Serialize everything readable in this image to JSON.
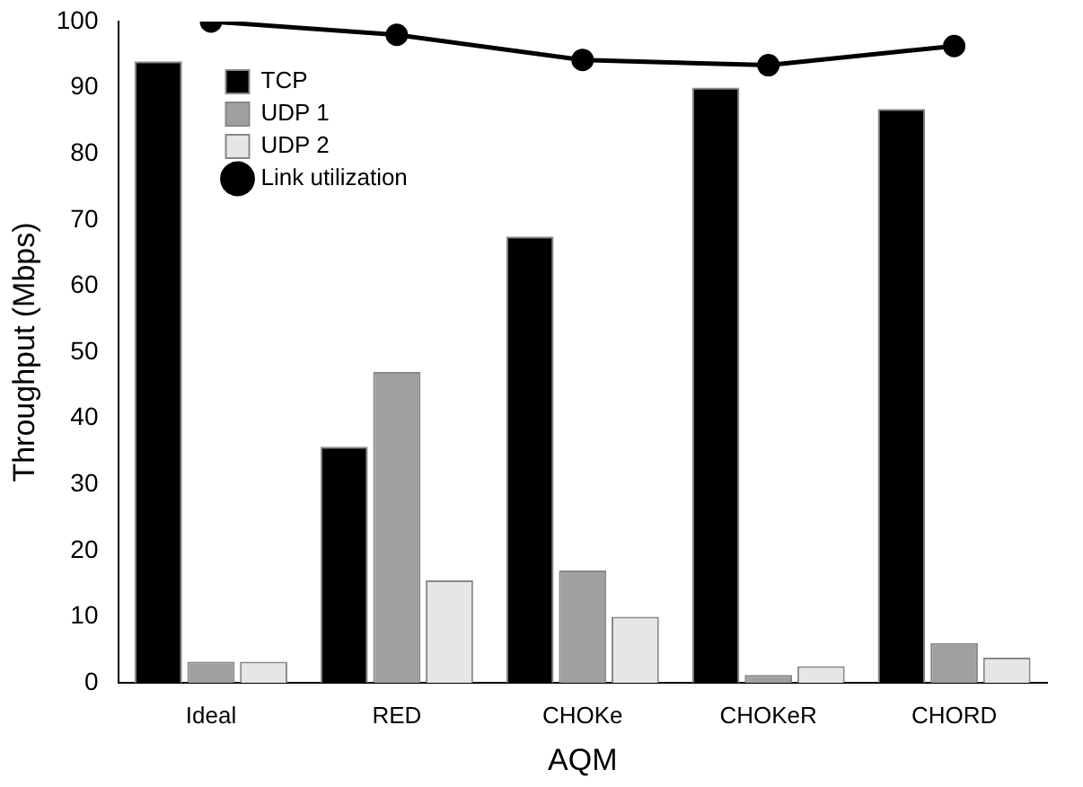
{
  "chart_data": {
    "type": "bar",
    "xlabel": "AQM",
    "ylabel": "Throughput (Mbps)",
    "categories": [
      "Ideal",
      "RED",
      "CHOKe",
      "CHOKeR",
      "CHORD"
    ],
    "series": [
      {
        "name": "TCP",
        "color": "#000000",
        "values": [
          94,
          35.7,
          67.5,
          90,
          86.8
        ]
      },
      {
        "name": "UDP 1",
        "color": "#a0a0a0",
        "values": [
          3.2,
          47,
          17,
          1.2,
          6
        ]
      },
      {
        "name": "UDP 2",
        "color": "#e6e6e6",
        "values": [
          3.2,
          15.5,
          10,
          2.5,
          3.8
        ]
      },
      {
        "name": "Link utilization",
        "type": "line",
        "color": "#000000",
        "values": [
          100,
          98,
          94.2,
          93.4,
          96.3
        ]
      }
    ],
    "ylim": [
      0,
      100
    ],
    "yticks": [
      0,
      10,
      20,
      30,
      40,
      50,
      60,
      70,
      80,
      90,
      100
    ],
    "grid": false,
    "legend": "top left",
    "marker": "circle",
    "line_style": "solid"
  }
}
